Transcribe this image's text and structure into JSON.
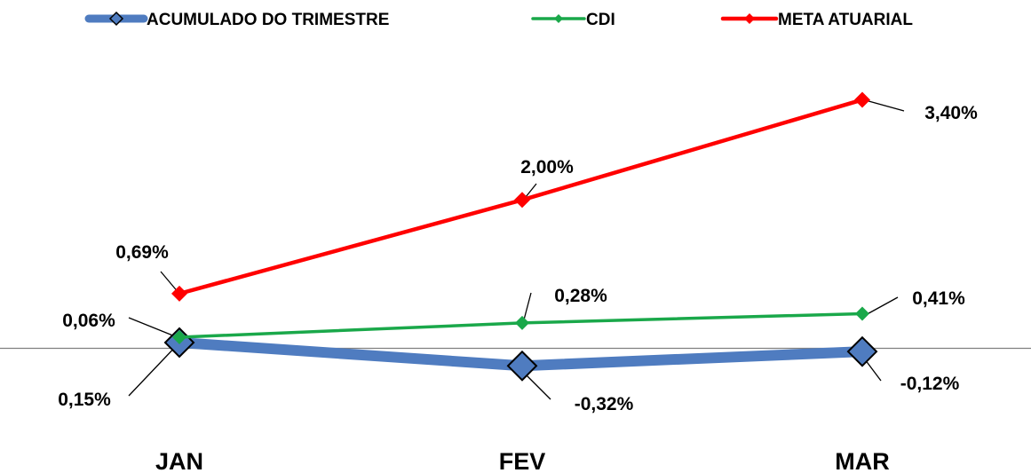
{
  "chart_data": {
    "type": "line",
    "categories": [
      "JAN",
      "FEV",
      "MAR"
    ],
    "series": [
      {
        "name": "ACUMULADO DO TRIMESTRE",
        "color": "#4f7cc0",
        "marker": "diamond",
        "values": [
          0.15,
          -0.32,
          -0.12
        ],
        "labels": [
          "0,15%",
          "-0,32%",
          "-0,12%"
        ]
      },
      {
        "name": "CDI",
        "color": "#1aa84a",
        "marker": "diamond",
        "values": [
          0.06,
          0.28,
          0.41
        ],
        "labels": [
          "0,06%",
          "0,28%",
          "0,41%"
        ]
      },
      {
        "name": "META ATUARIAL",
        "color": "#ff0000",
        "marker": "diamond",
        "values": [
          0.69,
          2.0,
          3.4
        ],
        "labels": [
          "0,69%",
          "2,00%",
          "3,40%"
        ]
      }
    ],
    "legend_position": "top",
    "grid": false,
    "zero_line": true
  }
}
